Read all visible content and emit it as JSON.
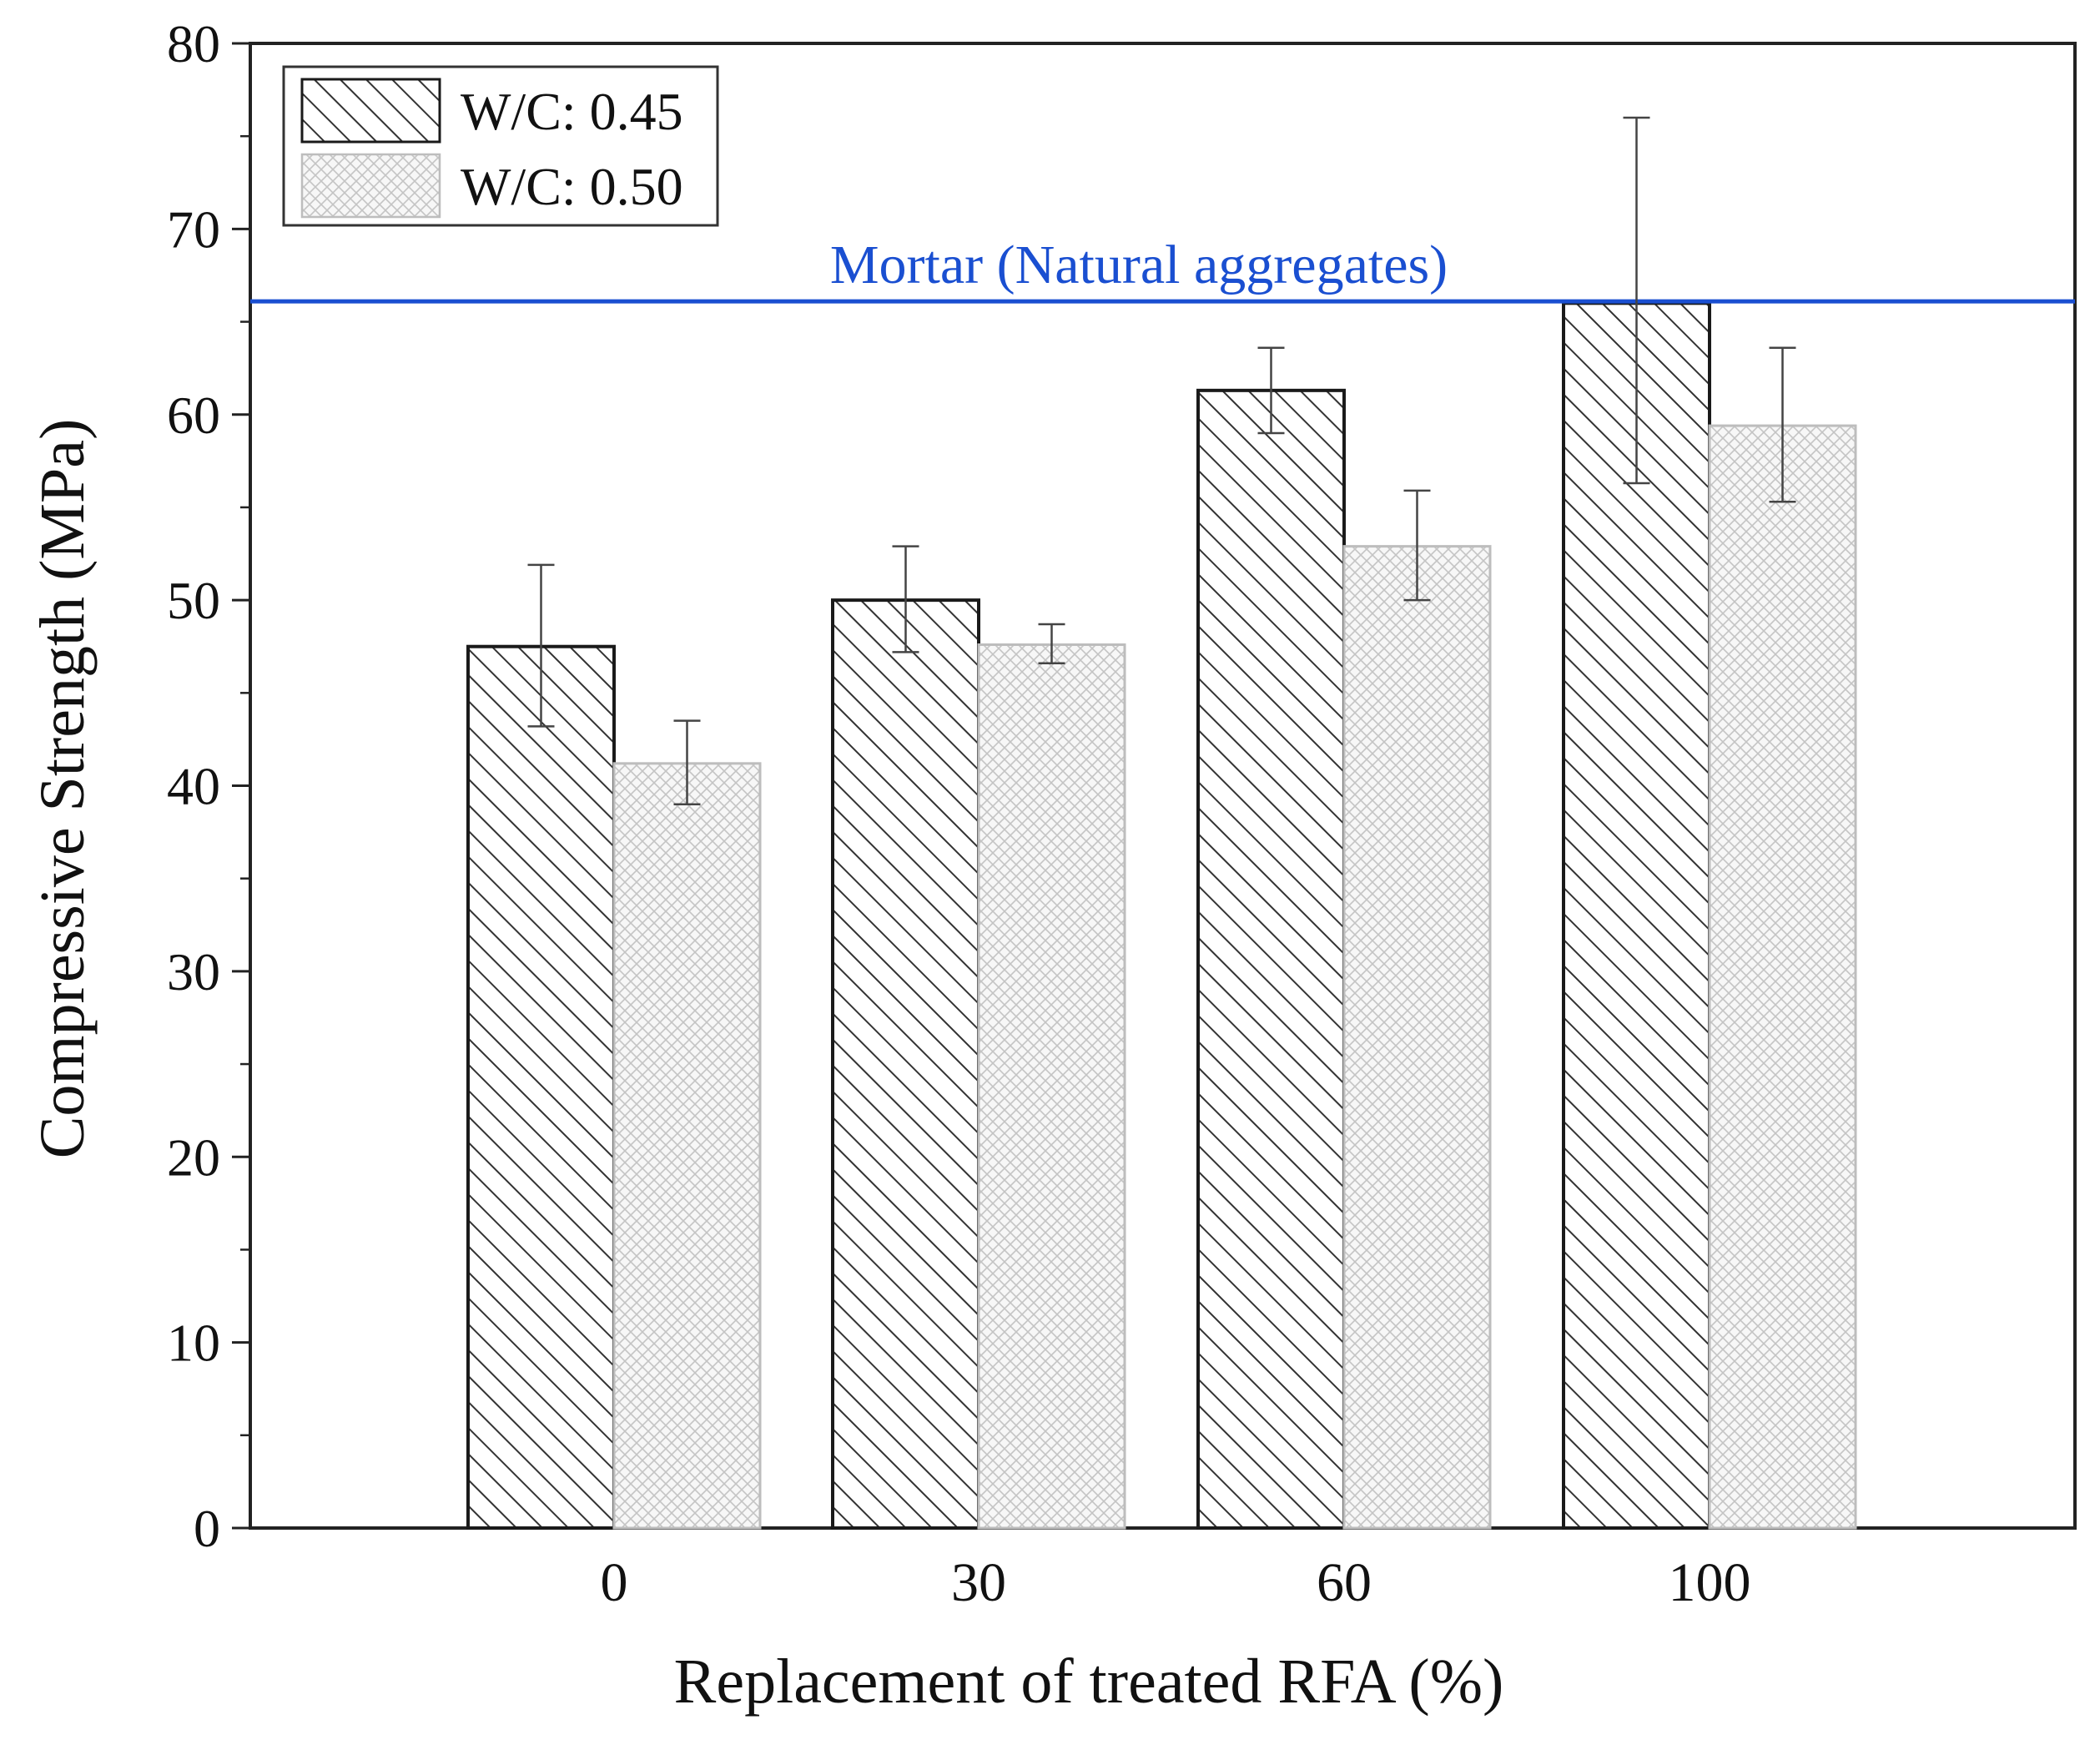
{
  "chart_data": {
    "type": "bar",
    "title": "",
    "xlabel": "Replacement of treated RFA (%)",
    "ylabel": "Compressive Strength (MPa)",
    "ylim": [
      0,
      80
    ],
    "yticks": [
      0,
      10,
      20,
      30,
      40,
      50,
      60,
      70,
      80
    ],
    "categories": [
      "0",
      "30",
      "60",
      "100"
    ],
    "series": [
      {
        "name": "W/C: 0.45",
        "pattern": "diagonal-hatch",
        "values": [
          47.5,
          50.0,
          61.3,
          66.0
        ],
        "err_low": [
          43.2,
          47.2,
          59.0,
          56.3
        ],
        "err_high": [
          51.9,
          52.9,
          63.6,
          76.0
        ]
      },
      {
        "name": "W/C: 0.50",
        "pattern": "cross-hatch",
        "values": [
          41.2,
          47.6,
          52.9,
          59.4
        ],
        "err_low": [
          39.0,
          46.6,
          50.0,
          55.3
        ],
        "err_high": [
          43.5,
          48.7,
          55.9,
          63.6
        ]
      }
    ],
    "reference_line": {
      "label": "Mortar (Natural aggregates)",
      "value": 66.1,
      "color": "#1a4fd1"
    },
    "legend": {
      "position": "top-left",
      "entries": [
        "W/C: 0.45",
        "W/C: 0.50"
      ]
    }
  }
}
